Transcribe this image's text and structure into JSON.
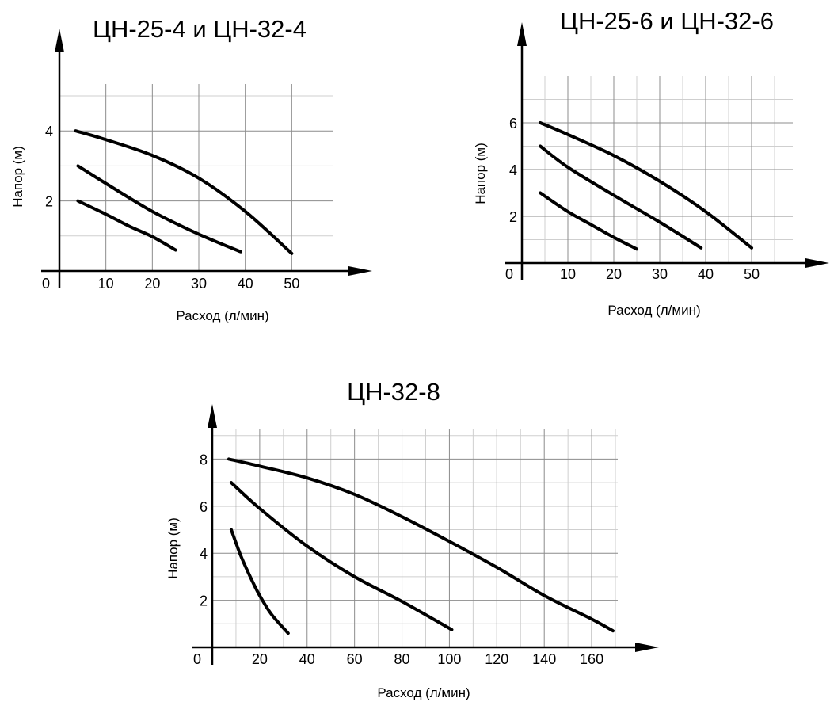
{
  "chart_data": [
    {
      "type": "line",
      "title": "ЦН-25-4 и ЦН-32-4",
      "xlabel": "Расход (л/мин)",
      "ylabel": "Напор (м)",
      "origin_label": "0",
      "xlim": [
        0,
        60
      ],
      "ylim": [
        0,
        5.4
      ],
      "x_ticks": [
        10,
        20,
        30,
        40,
        50
      ],
      "y_ticks": [
        2,
        4
      ],
      "grid": "on",
      "series": [
        {
          "x": [
            4,
            10,
            15,
            20,
            25
          ],
          "y": [
            2.0,
            1.62,
            1.28,
            0.98,
            0.6
          ]
        },
        {
          "x": [
            4,
            10,
            20,
            30,
            39
          ],
          "y": [
            3.0,
            2.5,
            1.7,
            1.05,
            0.55
          ]
        },
        {
          "x": [
            3.5,
            10,
            20,
            30,
            40,
            50
          ],
          "y": [
            4.0,
            3.75,
            3.3,
            2.65,
            1.7,
            0.5
          ]
        }
      ]
    },
    {
      "type": "line",
      "title": "ЦН-25-6 и ЦН-32-6",
      "xlabel": "Расход (л/мин)",
      "ylabel": "Напор (м)",
      "origin_label": "0",
      "xlim": [
        0,
        60
      ],
      "ylim": [
        0,
        8
      ],
      "x_ticks": [
        10,
        20,
        30,
        40,
        50
      ],
      "y_ticks": [
        2,
        4,
        6
      ],
      "grid": "on",
      "series": [
        {
          "x": [
            4,
            10,
            15,
            20,
            25
          ],
          "y": [
            3.0,
            2.2,
            1.65,
            1.1,
            0.6
          ]
        },
        {
          "x": [
            4,
            10,
            20,
            30,
            39
          ],
          "y": [
            5.0,
            4.1,
            2.9,
            1.75,
            0.65
          ]
        },
        {
          "x": [
            4,
            10,
            20,
            30,
            40,
            50
          ],
          "y": [
            6.0,
            5.5,
            4.6,
            3.5,
            2.2,
            0.65
          ]
        }
      ]
    },
    {
      "type": "line",
      "title": "ЦН-32-8",
      "xlabel": "Расход (л/мин)",
      "ylabel": "Напор (м)",
      "origin_label": "0",
      "xlim": [
        0,
        175
      ],
      "ylim": [
        0,
        9
      ],
      "x_ticks": [
        20,
        40,
        60,
        80,
        100,
        120,
        140,
        160
      ],
      "y_ticks": [
        2,
        4,
        6,
        8
      ],
      "grid": "on",
      "series": [
        {
          "x": [
            8,
            12,
            16,
            20,
            25,
            32
          ],
          "y": [
            5.0,
            3.9,
            3.0,
            2.2,
            1.4,
            0.6
          ]
        },
        {
          "x": [
            8,
            20,
            40,
            60,
            80,
            101
          ],
          "y": [
            7.0,
            5.9,
            4.3,
            3.0,
            1.95,
            0.75
          ]
        },
        {
          "x": [
            7,
            20,
            40,
            60,
            80,
            100,
            120,
            140,
            160,
            169
          ],
          "y": [
            8.0,
            7.7,
            7.2,
            6.5,
            5.55,
            4.5,
            3.4,
            2.2,
            1.2,
            0.7
          ]
        }
      ]
    }
  ]
}
